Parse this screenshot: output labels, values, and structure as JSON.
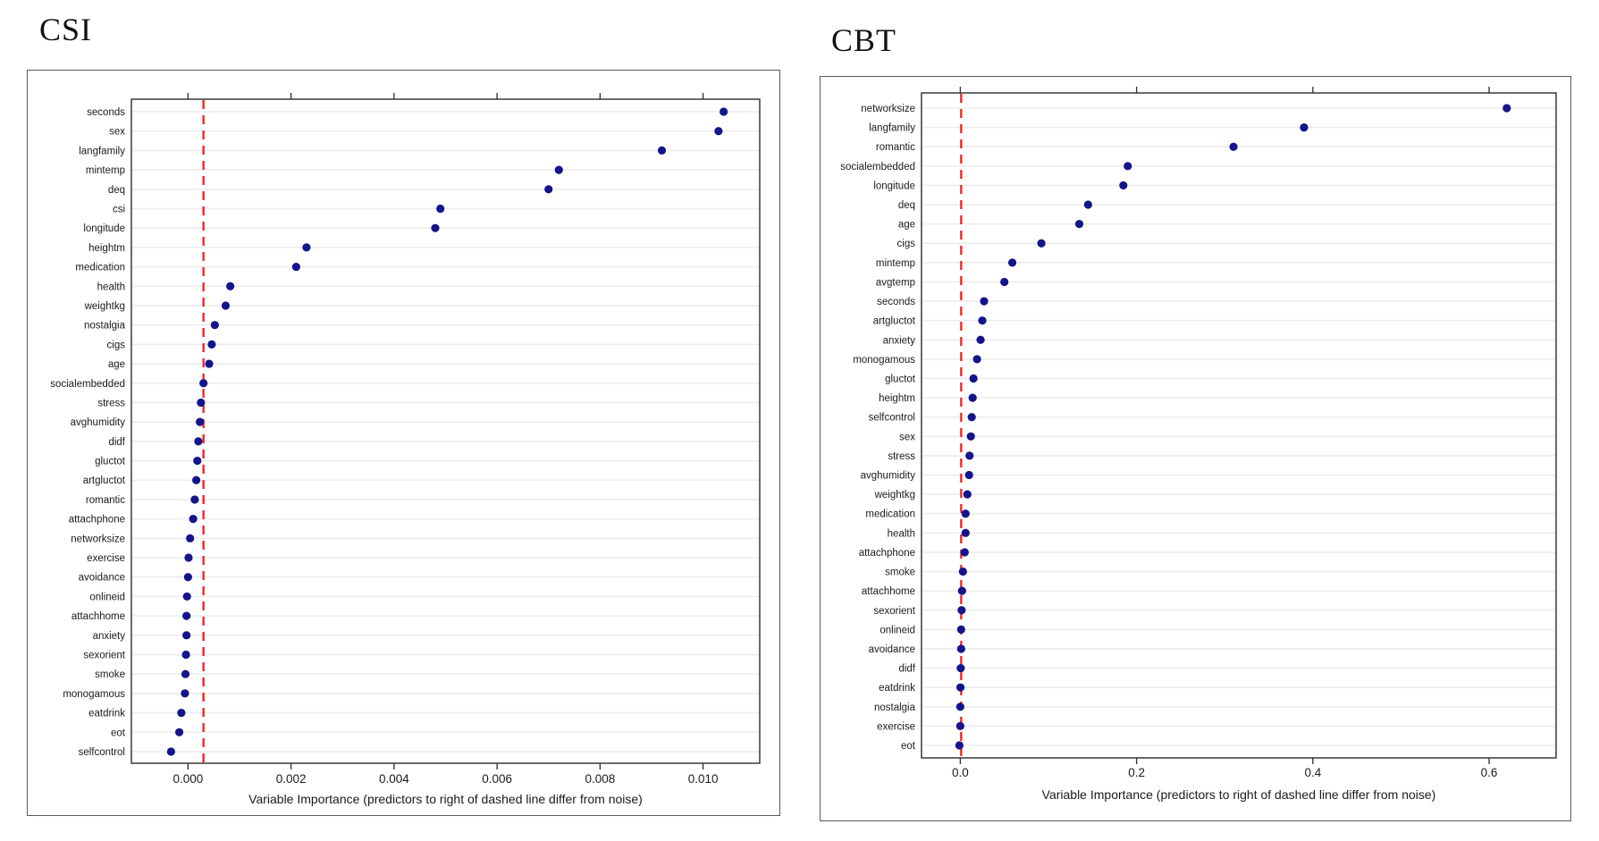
{
  "xaxis_caption": "Variable Importance (predictors to right of dashed line differ from noise)",
  "colors": {
    "dot": "#14148b",
    "threshold": "#f81d1d",
    "grid": "#ececec",
    "box_border": "#2b2b2b",
    "panel_border": "#5a5a5a",
    "text": "#1a1a1a"
  },
  "chart_data": [
    {
      "type": "scatter",
      "title": "CSI",
      "xlabel": "Variable Importance (predictors to right of dashed line differ from noise)",
      "ylabel": "",
      "legend": null,
      "grid": "horizontal",
      "xlim": [
        -0.0011,
        0.0111
      ],
      "x_ticks": [
        0.0,
        0.002,
        0.004,
        0.006,
        0.008,
        0.01
      ],
      "x_tick_labels": [
        "0.000",
        "0.002",
        "0.004",
        "0.006",
        "0.008",
        "0.010"
      ],
      "threshold_line": {
        "value": 0.0003,
        "style": "dashed"
      },
      "categories": [
        "seconds",
        "sex",
        "langfamily",
        "mintemp",
        "deq",
        "csi",
        "longitude",
        "heightm",
        "medication",
        "health",
        "weightkg",
        "nostalgia",
        "cigs",
        "age",
        "socialembedded",
        "stress",
        "avghumidity",
        "didf",
        "gluctot",
        "artgluctot",
        "romantic",
        "attachphone",
        "networksize",
        "exercise",
        "avoidance",
        "onlineid",
        "attachhome",
        "anxiety",
        "sexorient",
        "smoke",
        "monogamous",
        "eatdrink",
        "eot",
        "selfcontrol"
      ],
      "values": [
        0.0104,
        0.0103,
        0.0092,
        0.0072,
        0.007,
        0.0049,
        0.0048,
        0.0023,
        0.0021,
        0.00082,
        0.00073,
        0.00052,
        0.00046,
        0.00041,
        0.0003,
        0.00025,
        0.00023,
        0.0002,
        0.00018,
        0.00016,
        0.00013,
        0.0001,
        4e-05,
        1e-05,
        0.0,
        -2e-05,
        -3e-05,
        -3e-05,
        -4e-05,
        -5e-05,
        -6e-05,
        -0.00013,
        -0.00017,
        -0.00033
      ]
    },
    {
      "type": "scatter",
      "title": "CBT",
      "xlabel": "Variable Importance (predictors to right of dashed line differ from noise)",
      "ylabel": "",
      "legend": null,
      "grid": "horizontal",
      "xlim": [
        -0.044,
        0.676
      ],
      "x_ticks": [
        0.0,
        0.2,
        0.4,
        0.6
      ],
      "x_tick_labels": [
        "0.0",
        "0.2",
        "0.4",
        "0.6"
      ],
      "threshold_line": {
        "value": 0.001,
        "style": "dashed"
      },
      "categories": [
        "networksize",
        "langfamily",
        "romantic",
        "socialembedded",
        "longitude",
        "deq",
        "age",
        "cigs",
        "mintemp",
        "avgtemp",
        "seconds",
        "artgluctot",
        "anxiety",
        "monogamous",
        "gluctot",
        "heightm",
        "selfcontrol",
        "sex",
        "stress",
        "avghumidity",
        "weightkg",
        "medication",
        "health",
        "attachphone",
        "smoke",
        "attachhome",
        "sexorient",
        "onlineid",
        "avoidance",
        "didf",
        "eatdrink",
        "nostalgia",
        "exercise",
        "eot"
      ],
      "values": [
        0.62,
        0.39,
        0.31,
        0.19,
        0.185,
        0.145,
        0.135,
        0.092,
        0.059,
        0.05,
        0.027,
        0.025,
        0.023,
        0.019,
        0.015,
        0.014,
        0.013,
        0.012,
        0.0105,
        0.01,
        0.008,
        0.006,
        0.006,
        0.005,
        0.003,
        0.002,
        0.0015,
        0.001,
        0.001,
        0.0005,
        0.0002,
        0.0,
        0.0,
        -0.001
      ]
    }
  ]
}
